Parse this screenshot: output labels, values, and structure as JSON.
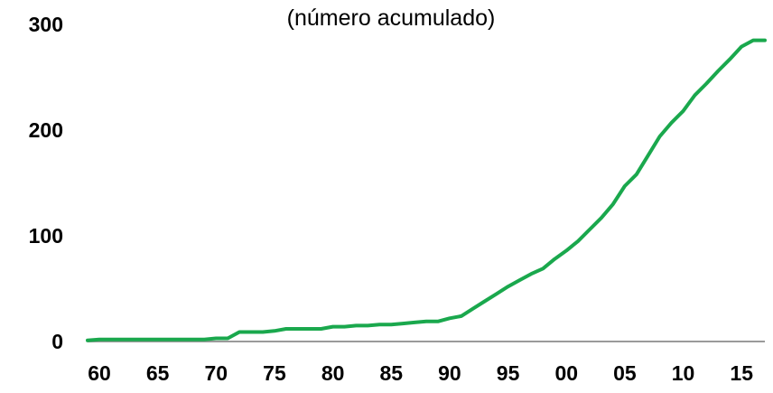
{
  "chart_data": {
    "type": "line",
    "title": "",
    "subtitle": "(número acumulado)",
    "xlabel": "",
    "ylabel": "",
    "xlim": [
      1960,
      2018
    ],
    "ylim": [
      0,
      300
    ],
    "grid": false,
    "x_tick_labels": [
      "60",
      "65",
      "70",
      "75",
      "80",
      "85",
      "90",
      "95",
      "00",
      "05",
      "10",
      "15"
    ],
    "y_tick_labels": [
      "0",
      "100",
      "200",
      "300"
    ],
    "series": [
      {
        "color": "#1aa84d",
        "x": [
          1960,
          1961,
          1962,
          1963,
          1964,
          1965,
          1966,
          1967,
          1968,
          1969,
          1970,
          1971,
          1972,
          1973,
          1974,
          1975,
          1976,
          1977,
          1978,
          1979,
          1980,
          1981,
          1982,
          1983,
          1984,
          1985,
          1986,
          1987,
          1988,
          1989,
          1990,
          1991,
          1992,
          1993,
          1994,
          1995,
          1996,
          1997,
          1998,
          1999,
          2000,
          2001,
          2002,
          2003,
          2004,
          2005,
          2006,
          2007,
          2008,
          2009,
          2010,
          2011,
          2012,
          2013,
          2014,
          2015,
          2016,
          2017,
          2018
        ],
        "values": [
          1,
          2,
          2,
          2,
          2,
          2,
          2,
          2,
          2,
          2,
          2,
          3,
          3,
          9,
          9,
          9,
          10,
          12,
          12,
          12,
          12,
          14,
          14,
          15,
          15,
          16,
          16,
          17,
          18,
          19,
          19,
          22,
          24,
          31,
          38,
          45,
          52,
          58,
          64,
          69,
          78,
          86,
          95,
          106,
          117,
          130,
          147,
          158,
          176,
          194,
          207,
          218,
          233,
          244,
          256,
          267,
          279,
          285,
          285
        ]
      }
    ]
  }
}
